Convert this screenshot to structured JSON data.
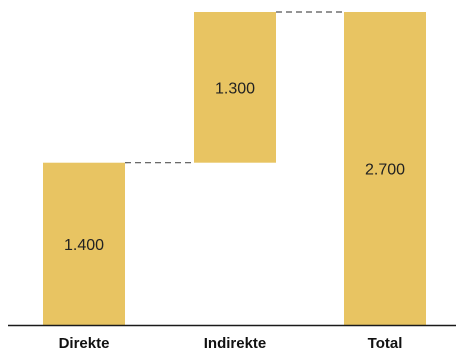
{
  "chart_data": {
    "type": "waterfall",
    "title": "",
    "xlabel": "",
    "ylabel": "",
    "categories": [
      "Direkte",
      "Indirekte",
      "Total"
    ],
    "values": [
      1400,
      1300,
      2700
    ],
    "value_labels": [
      "1.400",
      "1.300",
      "2.700"
    ],
    "ylim": [
      0,
      2700
    ],
    "bar_color": "#E8C462",
    "axis_color": "#1a1a1a",
    "connector_color": "#555555",
    "grid": false,
    "legend": "none"
  }
}
